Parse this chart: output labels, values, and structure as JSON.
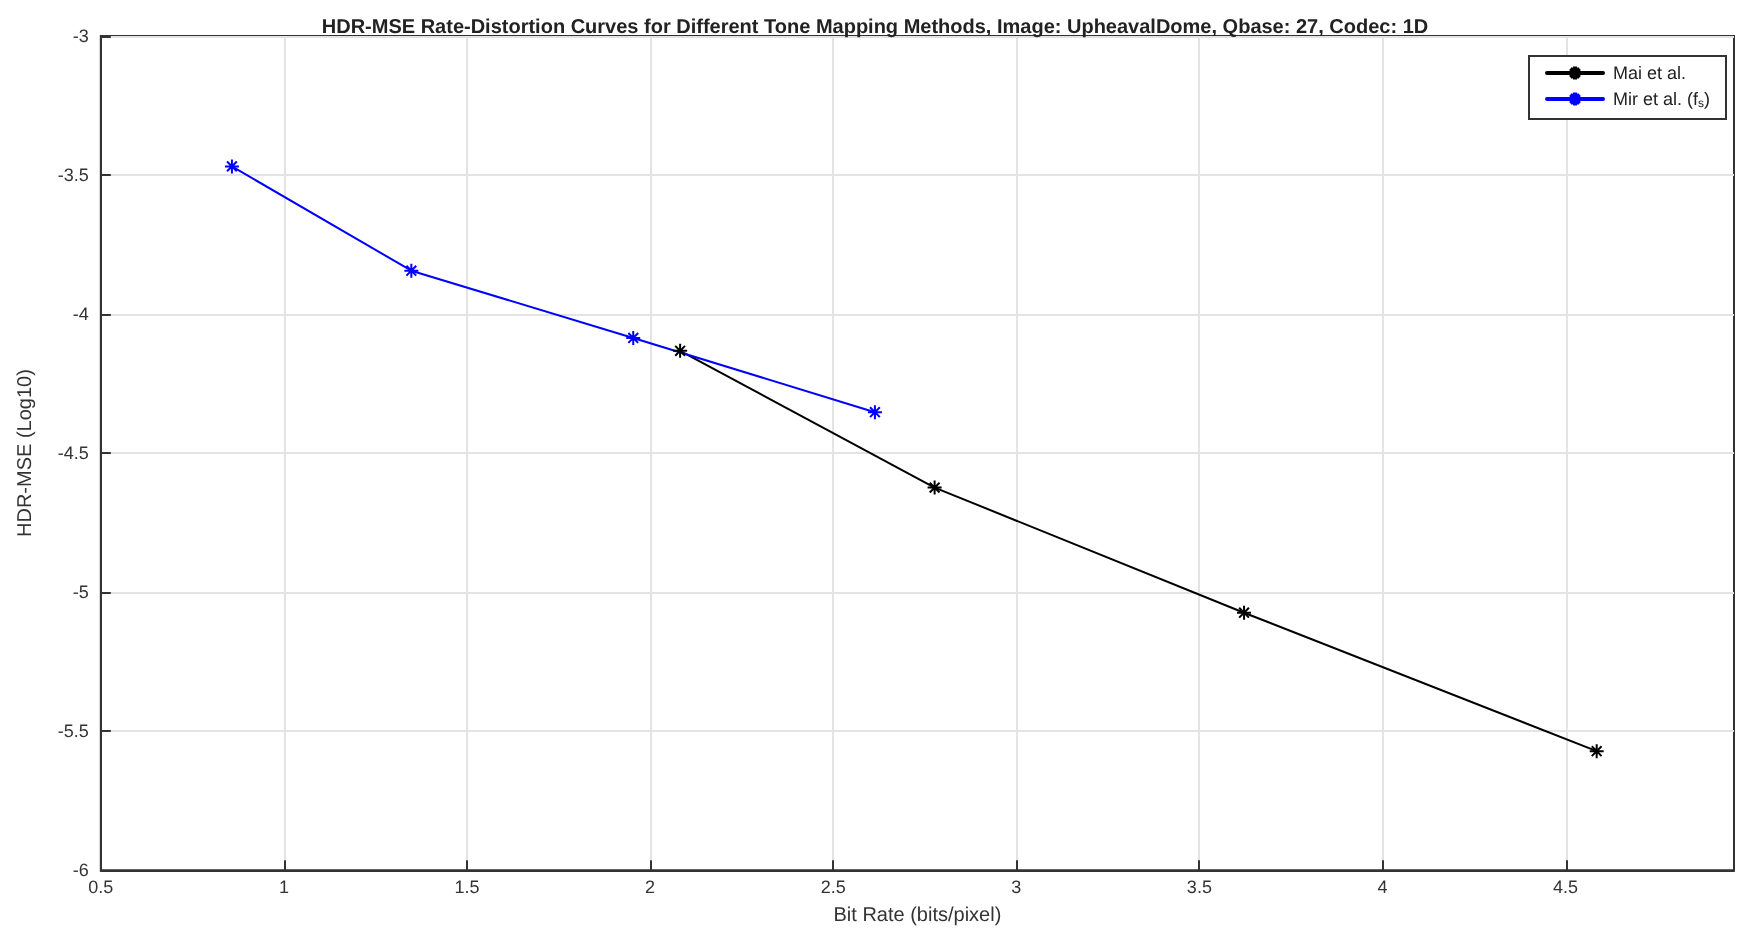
{
  "chart_data": {
    "type": "line",
    "title": "HDR-MSE Rate-Distortion Curves for Different Tone Mapping Methods, Image: UpheavalDome, Qbase: 27, Codec: 1D",
    "xlabel": "Bit Rate (bits/pixel)",
    "ylabel": "HDR-MSE (Log10)",
    "series": [
      {
        "name": "Mai et al.",
        "color": "#000000",
        "x": [
          2.082,
          2.777,
          3.622,
          4.585
        ],
        "values": [
          -4.132,
          -4.624,
          -5.074,
          -5.572
        ]
      },
      {
        "name": "Mir et al. (f$_{s}$)",
        "color": "#0000ff",
        "x": [
          0.858,
          1.348,
          1.954,
          2.614
        ],
        "values": [
          -3.469,
          -3.844,
          -4.086,
          -4.353
        ]
      }
    ],
    "xlim": [
      0.5,
      4.96
    ],
    "xticks": [
      0.5,
      1,
      1.5,
      2,
      2.5,
      3,
      3.5,
      4,
      4.5
    ],
    "ylim": [
      -6,
      -3
    ],
    "yticks": [
      -6,
      -5.5,
      -5,
      -4.5,
      -4,
      -3.5,
      -3
    ],
    "grid": true,
    "legend": "top right",
    "marker": "cross",
    "line_style": "solid"
  }
}
